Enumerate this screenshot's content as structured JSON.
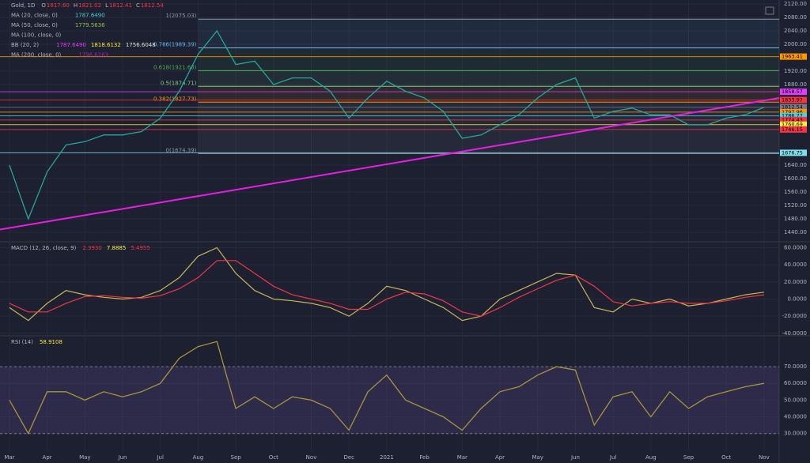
{
  "chart_data": [
    {
      "type": "line",
      "title": "Gold, 1D",
      "ohlc": [
        {
          "label": "O",
          "value": "1817.60"
        },
        {
          "label": "H",
          "value": "1821.02"
        },
        {
          "label": "L",
          "value": "1812.41"
        },
        {
          "label": "C",
          "value": "1812.54"
        }
      ],
      "legend": [
        {
          "name": "MA (20, close, 0)",
          "values": [
            "1787.6490"
          ],
          "colors": [
            "#4dd0e1"
          ]
        },
        {
          "name": "MA (50, close, 0)",
          "values": [
            "1779.5636"
          ],
          "colors": [
            "#8bc34a"
          ]
        },
        {
          "name": "MA (100, close, 0)",
          "values": [],
          "colors": []
        },
        {
          "name": "BB (20, 2)",
          "values": [
            "1787.6490",
            "1818.6132",
            "1756.6048"
          ],
          "colors": [
            "#e040fb",
            "#ffeb3b",
            "#e0e0e0"
          ]
        },
        {
          "name": "MA (200, close, 0)",
          "values": [
            "1796.6263"
          ],
          "colors": [
            "#9c27b0"
          ]
        }
      ],
      "x": [
        0,
        0.5,
        1,
        1.5,
        2,
        2.5,
        3,
        3.5,
        4,
        4.5,
        5,
        5.5,
        6,
        6.5,
        7,
        7.5,
        8,
        8.5,
        9,
        9.5,
        10,
        10.5,
        11,
        11.5,
        12,
        12.5,
        13,
        13.5,
        14,
        14.5,
        15,
        15.5,
        16,
        16.5,
        17,
        17.5,
        18,
        18.5,
        19,
        19.5,
        20
      ],
      "values": [
        1640,
        1480,
        1620,
        1700,
        1710,
        1730,
        1730,
        1740,
        1780,
        1860,
        1970,
        2040,
        1940,
        1950,
        1880,
        1900,
        1900,
        1860,
        1780,
        1840,
        1890,
        1860,
        1840,
        1800,
        1720,
        1730,
        1760,
        1790,
        1840,
        1880,
        1900,
        1780,
        1800,
        1810,
        1790,
        1790,
        1760,
        1760,
        1780,
        1790,
        1812
      ],
      "color": "#26a69a",
      "xlim": [
        -0.25,
        20.4
      ],
      "ylim": [
        1414,
        2132
      ],
      "yticks": [
        {
          "value": 2120,
          "label": "2120.00"
        },
        {
          "value": 2080,
          "label": "2080.00"
        },
        {
          "value": 2040,
          "label": "2040.00"
        },
        {
          "value": 2000,
          "label": "2000.00"
        },
        {
          "value": 1960,
          "label": "1960.00"
        },
        {
          "value": 1920,
          "label": "1920.00"
        },
        {
          "value": 1880,
          "label": "1880.00"
        },
        {
          "value": 1640,
          "label": "1640.00"
        },
        {
          "value": 1600,
          "label": "1600.00"
        },
        {
          "value": 1560,
          "label": "1560.00"
        },
        {
          "value": 1520,
          "label": "1520.00"
        },
        {
          "value": 1480,
          "label": "1480.00"
        },
        {
          "value": 1440,
          "label": "1440.00"
        }
      ],
      "levels": [
        1963.41,
        1858.57,
        1833.97,
        1812.54,
        1797.96,
        1786.77,
        1774.43,
        1760.69,
        1746.15,
        1676.75
      ],
      "level_colors": [
        "#ff9800",
        "#e040fb",
        "#f23645",
        "#787b86",
        "#ff9800",
        "#4dd0e1",
        "#f23645",
        "#ffeb3b",
        "#f23645",
        "#80deea"
      ],
      "fib": [
        {
          "value": 2075.03,
          "label": "1(2075.03)"
        },
        {
          "value": 1989.39,
          "label": "0.786(1989.39)"
        },
        {
          "value": 1921.68,
          "label": "0.618(1921.68)"
        },
        {
          "value": 1874.71,
          "label": "0.5(1874.71)"
        },
        {
          "value": 1827.73,
          "label": "0.382(1827.73)"
        },
        {
          "value": 1674.39,
          "label": "0(1674.39)"
        }
      ],
      "fib_colors": [
        "#9598a1",
        "#64b5f6",
        "#4caf50",
        "#81c784",
        "#ff9800",
        "#9598a1"
      ],
      "fib_x": [
        5.0,
        20.4
      ],
      "trendline": {
        "x": [
          -0.25,
          20.4
        ],
        "y": [
          1448,
          1840
        ],
        "color": "#e91ee3"
      }
    },
    {
      "type": "line",
      "title": "MACD (12, 26, close, 9)",
      "legend_values": [
        "2.3930",
        "7.8885",
        "5.4955"
      ],
      "legend_colors": [
        "#f23645",
        "#ffeb3b",
        "#f23645"
      ],
      "x": [
        0,
        0.5,
        1,
        1.5,
        2,
        2.5,
        3,
        3.5,
        4,
        4.5,
        5,
        5.5,
        6,
        6.5,
        7,
        7.5,
        8,
        8.5,
        9,
        9.5,
        10,
        10.5,
        11,
        11.5,
        12,
        12.5,
        13,
        13.5,
        14,
        14.5,
        15,
        15.5,
        16,
        16.5,
        17,
        17.5,
        18,
        18.5,
        19,
        19.5,
        20
      ],
      "series": [
        {
          "color": "#c9b458",
          "values": [
            -10,
            -25,
            -5,
            10,
            5,
            2,
            0,
            2,
            10,
            25,
            50,
            60,
            30,
            10,
            0,
            -2,
            -5,
            -10,
            -20,
            -5,
            15,
            10,
            0,
            -10,
            -25,
            -20,
            0,
            10,
            20,
            30,
            28,
            -10,
            -15,
            0,
            -5,
            0,
            -8,
            -5,
            0,
            5,
            8
          ]
        },
        {
          "color": "#f23645",
          "values": [
            -5,
            -15,
            -15,
            -5,
            3,
            4,
            2,
            1,
            4,
            12,
            25,
            45,
            45,
            30,
            15,
            5,
            0,
            -5,
            -12,
            -12,
            0,
            8,
            6,
            -2,
            -15,
            -20,
            -10,
            2,
            12,
            22,
            28,
            15,
            -3,
            -8,
            -5,
            -3,
            -5,
            -5,
            -2,
            2,
            5
          ]
        }
      ],
      "xlim": [
        -0.25,
        20.4
      ],
      "ylim": [
        -42,
        66
      ],
      "yticks": [
        {
          "value": 60,
          "label": "60.0000"
        },
        {
          "value": 40,
          "label": "40.0000"
        },
        {
          "value": 20,
          "label": "20.0000"
        },
        {
          "value": 0,
          "label": "0.0000"
        },
        {
          "value": -20,
          "label": "-20.0000"
        },
        {
          "value": -40,
          "label": "-40.0000"
        }
      ]
    },
    {
      "type": "line",
      "title": "RSI (14)",
      "legend_values": [
        "58.9108"
      ],
      "legend_colors": [
        "#ffeb3b"
      ],
      "x": [
        0,
        0.5,
        1,
        1.5,
        2,
        2.5,
        3,
        3.5,
        4,
        4.5,
        5,
        5.5,
        6,
        6.5,
        7,
        7.5,
        8,
        8.5,
        9,
        9.5,
        10,
        10.5,
        11,
        11.5,
        12,
        12.5,
        13,
        13.5,
        14,
        14.5,
        15,
        15.5,
        16,
        16.5,
        17,
        17.5,
        18,
        18.5,
        19,
        19.5,
        20
      ],
      "values": [
        50,
        30,
        55,
        55,
        50,
        55,
        52,
        55,
        60,
        75,
        82,
        85,
        45,
        52,
        45,
        52,
        50,
        45,
        32,
        55,
        65,
        50,
        45,
        40,
        32,
        45,
        55,
        58,
        65,
        70,
        68,
        35,
        52,
        55,
        40,
        55,
        45,
        52,
        55,
        58,
        60
      ],
      "color": "#a8953a",
      "band": [
        30,
        70
      ],
      "xlim": [
        -0.25,
        20.4
      ],
      "ylim": [
        19,
        88
      ],
      "yticks": [
        {
          "value": 70,
          "label": "70.0000"
        },
        {
          "value": 60,
          "label": "60.0000"
        },
        {
          "value": 50,
          "label": "50.0000"
        },
        {
          "value": 40,
          "label": "40.0000"
        },
        {
          "value": 30,
          "label": "30.0000"
        }
      ],
      "xticks": [
        {
          "value": 0,
          "label": "Mar"
        },
        {
          "value": 1,
          "label": "Apr"
        },
        {
          "value": 2,
          "label": "May"
        },
        {
          "value": 3,
          "label": "Jun"
        },
        {
          "value": 4,
          "label": "Jul"
        },
        {
          "value": 5,
          "label": "Aug"
        },
        {
          "value": 6,
          "label": "Sep"
        },
        {
          "value": 7,
          "label": "Oct"
        },
        {
          "value": 8,
          "label": "Nov"
        },
        {
          "value": 9,
          "label": "Dec"
        },
        {
          "value": 10,
          "label": "2021"
        },
        {
          "value": 11,
          "label": "Feb"
        },
        {
          "value": 12,
          "label": "Mar"
        },
        {
          "value": 13,
          "label": "Apr"
        },
        {
          "value": 14,
          "label": "May"
        },
        {
          "value": 15,
          "label": "Jun"
        },
        {
          "value": 16,
          "label": "Jul"
        },
        {
          "value": 17,
          "label": "Aug"
        },
        {
          "value": 18,
          "label": "Sep"
        },
        {
          "value": 19,
          "label": "Oct"
        },
        {
          "value": 20,
          "label": "Nov"
        }
      ]
    }
  ]
}
